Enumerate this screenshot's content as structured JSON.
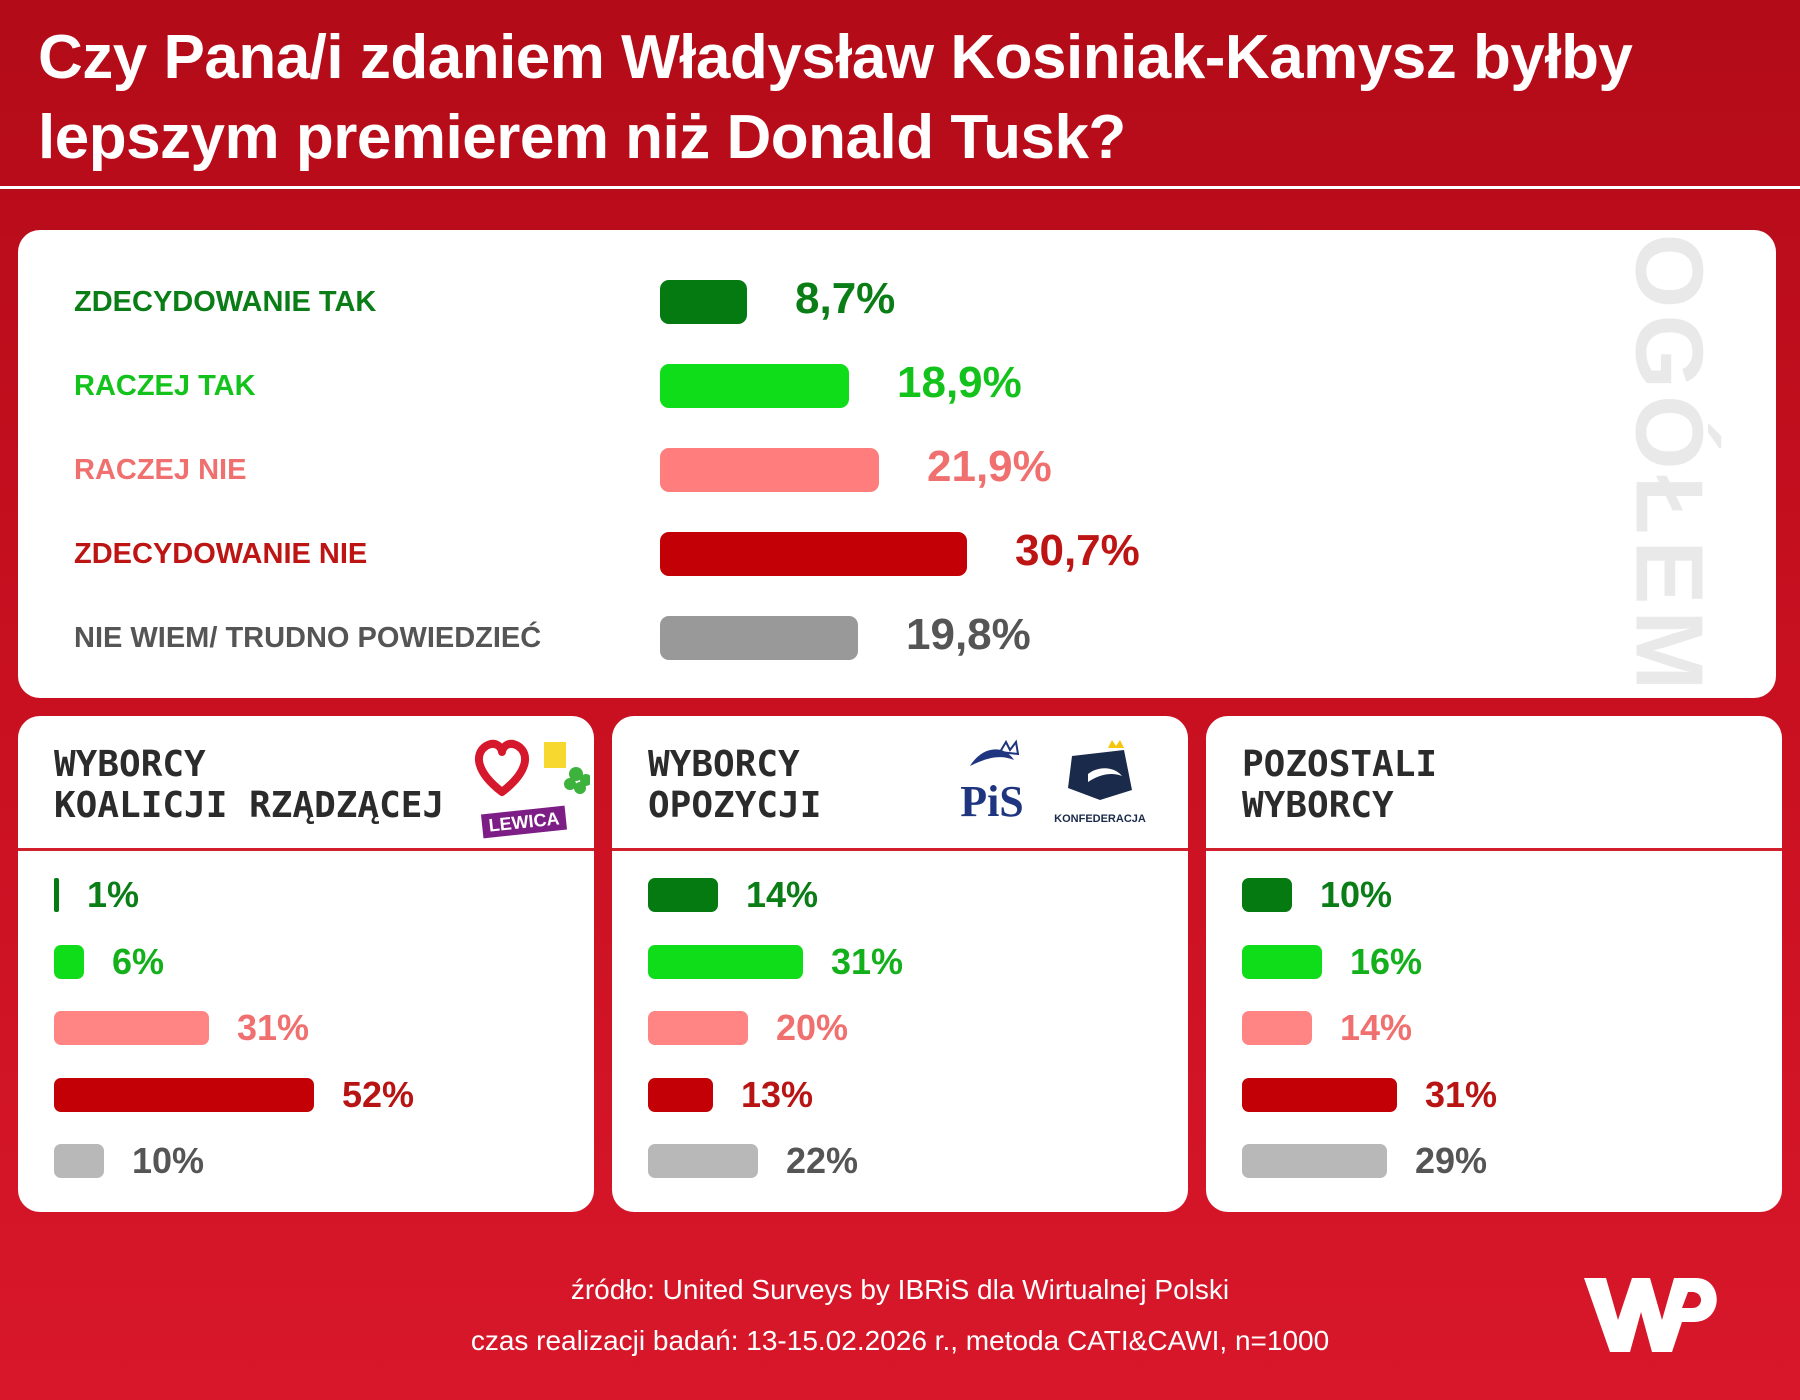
{
  "header": {
    "title": "Czy Pana/i zdaniem Władysław Kosiniak-Kamysz byłby lepszym premierem niż Donald Tusk?"
  },
  "chart_data": [
    {
      "type": "bar",
      "orientation": "horizontal",
      "panel_label": "OGÓŁEM",
      "categories": [
        "ZDECYDOWANIE TAK",
        "RACZEJ TAK",
        "RACZEJ NIE",
        "ZDECYDOWANIE NIE",
        "NIE WIEM/ TRUDNO POWIEDZIEĆ"
      ],
      "values": [
        8.7,
        18.9,
        21.9,
        30.7,
        19.8
      ],
      "value_labels": [
        "8,7%",
        "18,9%",
        "21,9%",
        "30,7%",
        "19,8%"
      ],
      "colors": [
        "#057a11",
        "#10dd1a",
        "#ff7d7d",
        "#c20006",
        "#999999"
      ],
      "label_colors": [
        "#0a7d16",
        "#13c31c",
        "#f06f6f",
        "#bd1414",
        "#555555"
      ]
    },
    {
      "type": "bar",
      "orientation": "horizontal",
      "title": "WYBORCY\nKOALICJI RZĄDZĄCEJ",
      "categories": [
        "ZDECYDOWANIE TAK",
        "RACZEJ TAK",
        "RACZEJ NIE",
        "ZDECYDOWANIE NIE",
        "NIE WIEM/ TRUDNO POWIEDZIEĆ"
      ],
      "values": [
        1,
        6,
        31,
        52,
        10
      ],
      "value_labels": [
        "1%",
        "6%",
        "31%",
        "52%",
        "10%"
      ],
      "logos": [
        "heart-logo",
        "polska-2050-logo",
        "clover-logo",
        "lewica-logo"
      ],
      "logo_text": {
        "lewica": "LEWICA"
      }
    },
    {
      "type": "bar",
      "orientation": "horizontal",
      "title": "WYBORCY\nOPOZYCJI",
      "categories": [
        "ZDECYDOWANIE TAK",
        "RACZEJ TAK",
        "RACZEJ NIE",
        "ZDECYDOWANIE NIE",
        "NIE WIEM/ TRUDNO POWIEDZIEĆ"
      ],
      "values": [
        14,
        31,
        20,
        13,
        22
      ],
      "value_labels": [
        "14%",
        "31%",
        "20%",
        "13%",
        "22%"
      ],
      "logos": [
        "pis-logo",
        "konfederacja-logo"
      ],
      "logo_text": {
        "pis": "PiS",
        "konfederacja": "KONFEDERACJA"
      }
    },
    {
      "type": "bar",
      "orientation": "horizontal",
      "title": "POZOSTALI\nWYBORCY",
      "categories": [
        "ZDECYDOWANIE TAK",
        "RACZEJ TAK",
        "RACZEJ NIE",
        "ZDECYDOWANIE NIE",
        "NIE WIEM/ TRUDNO POWIEDZIEĆ"
      ],
      "values": [
        10,
        16,
        14,
        31,
        29
      ],
      "value_labels": [
        "10%",
        "16%",
        "14%",
        "31%",
        "29%"
      ]
    }
  ],
  "group_colors": {
    "bars": [
      "#057a11",
      "#10dd1a",
      "#ff8585",
      "#c20006",
      "#b8b8b8"
    ],
    "labels": [
      "#0a7d16",
      "#13b01c",
      "#f06f6f",
      "#b81414",
      "#555555"
    ]
  },
  "footer": {
    "source": "źródło: United Surveys by IBRiS dla Wirtualnej Polski",
    "method": "czas realizacji badań: 13-15.02.2026 r., metoda CATI&CAWI, n=1000"
  },
  "brand": {
    "logo_icon": "wp-logo",
    "color": "#ffffff"
  }
}
